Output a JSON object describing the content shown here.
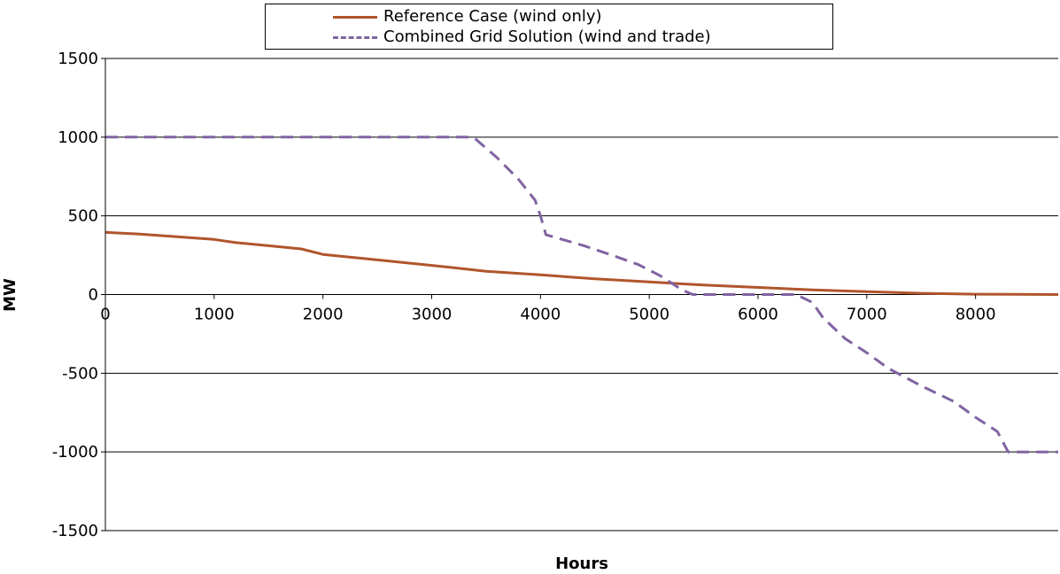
{
  "chart_data": {
    "type": "line",
    "xlabel": "Hours",
    "ylabel": "MW",
    "xlim": [
      0,
      8760
    ],
    "ylim": [
      -1500,
      1500
    ],
    "x_ticks": [
      "0",
      "1000",
      "2000",
      "3000",
      "4000",
      "5000",
      "6000",
      "7000",
      "8000"
    ],
    "y_ticks": [
      "1500",
      "1000",
      "500",
      "0",
      "-500",
      "-1000",
      "-1500"
    ],
    "x_tick_values": [
      0,
      1000,
      2000,
      3000,
      4000,
      5000,
      6000,
      7000,
      8000
    ],
    "y_tick_values": [
      1500,
      1000,
      500,
      0,
      -500,
      -1000,
      -1500
    ],
    "grid": "horizontal",
    "legend_position": "top",
    "series": [
      {
        "name": "Reference Case (wind only)",
        "color": "#b0552c",
        "style": "solid",
        "x": [
          0,
          300,
          500,
          1000,
          1200,
          1500,
          1800,
          2000,
          2500,
          3000,
          3500,
          4000,
          4500,
          5000,
          5500,
          6000,
          6500,
          7000,
          7500,
          8000,
          8760
        ],
        "y": [
          395,
          385,
          375,
          350,
          330,
          310,
          290,
          255,
          220,
          185,
          148,
          125,
          100,
          80,
          60,
          45,
          30,
          18,
          8,
          2,
          0
        ]
      },
      {
        "name": "Combined Grid Solution (wind and trade)",
        "color": "#8064a2",
        "style": "dashed",
        "x": [
          0,
          3350,
          3400,
          3600,
          3800,
          3950,
          4000,
          4050,
          4200,
          4400,
          4700,
          4900,
          5100,
          5300,
          5400,
          6000,
          6350,
          6500,
          6600,
          6800,
          7000,
          7200,
          7500,
          7800,
          8000,
          8200,
          8300,
          8760
        ],
        "y": [
          1000,
          1000,
          990,
          870,
          730,
          600,
          500,
          380,
          350,
          310,
          240,
          190,
          120,
          30,
          0,
          0,
          0,
          -50,
          -150,
          -280,
          -370,
          -470,
          -580,
          -680,
          -780,
          -870,
          -1000,
          -1000
        ]
      }
    ]
  }
}
